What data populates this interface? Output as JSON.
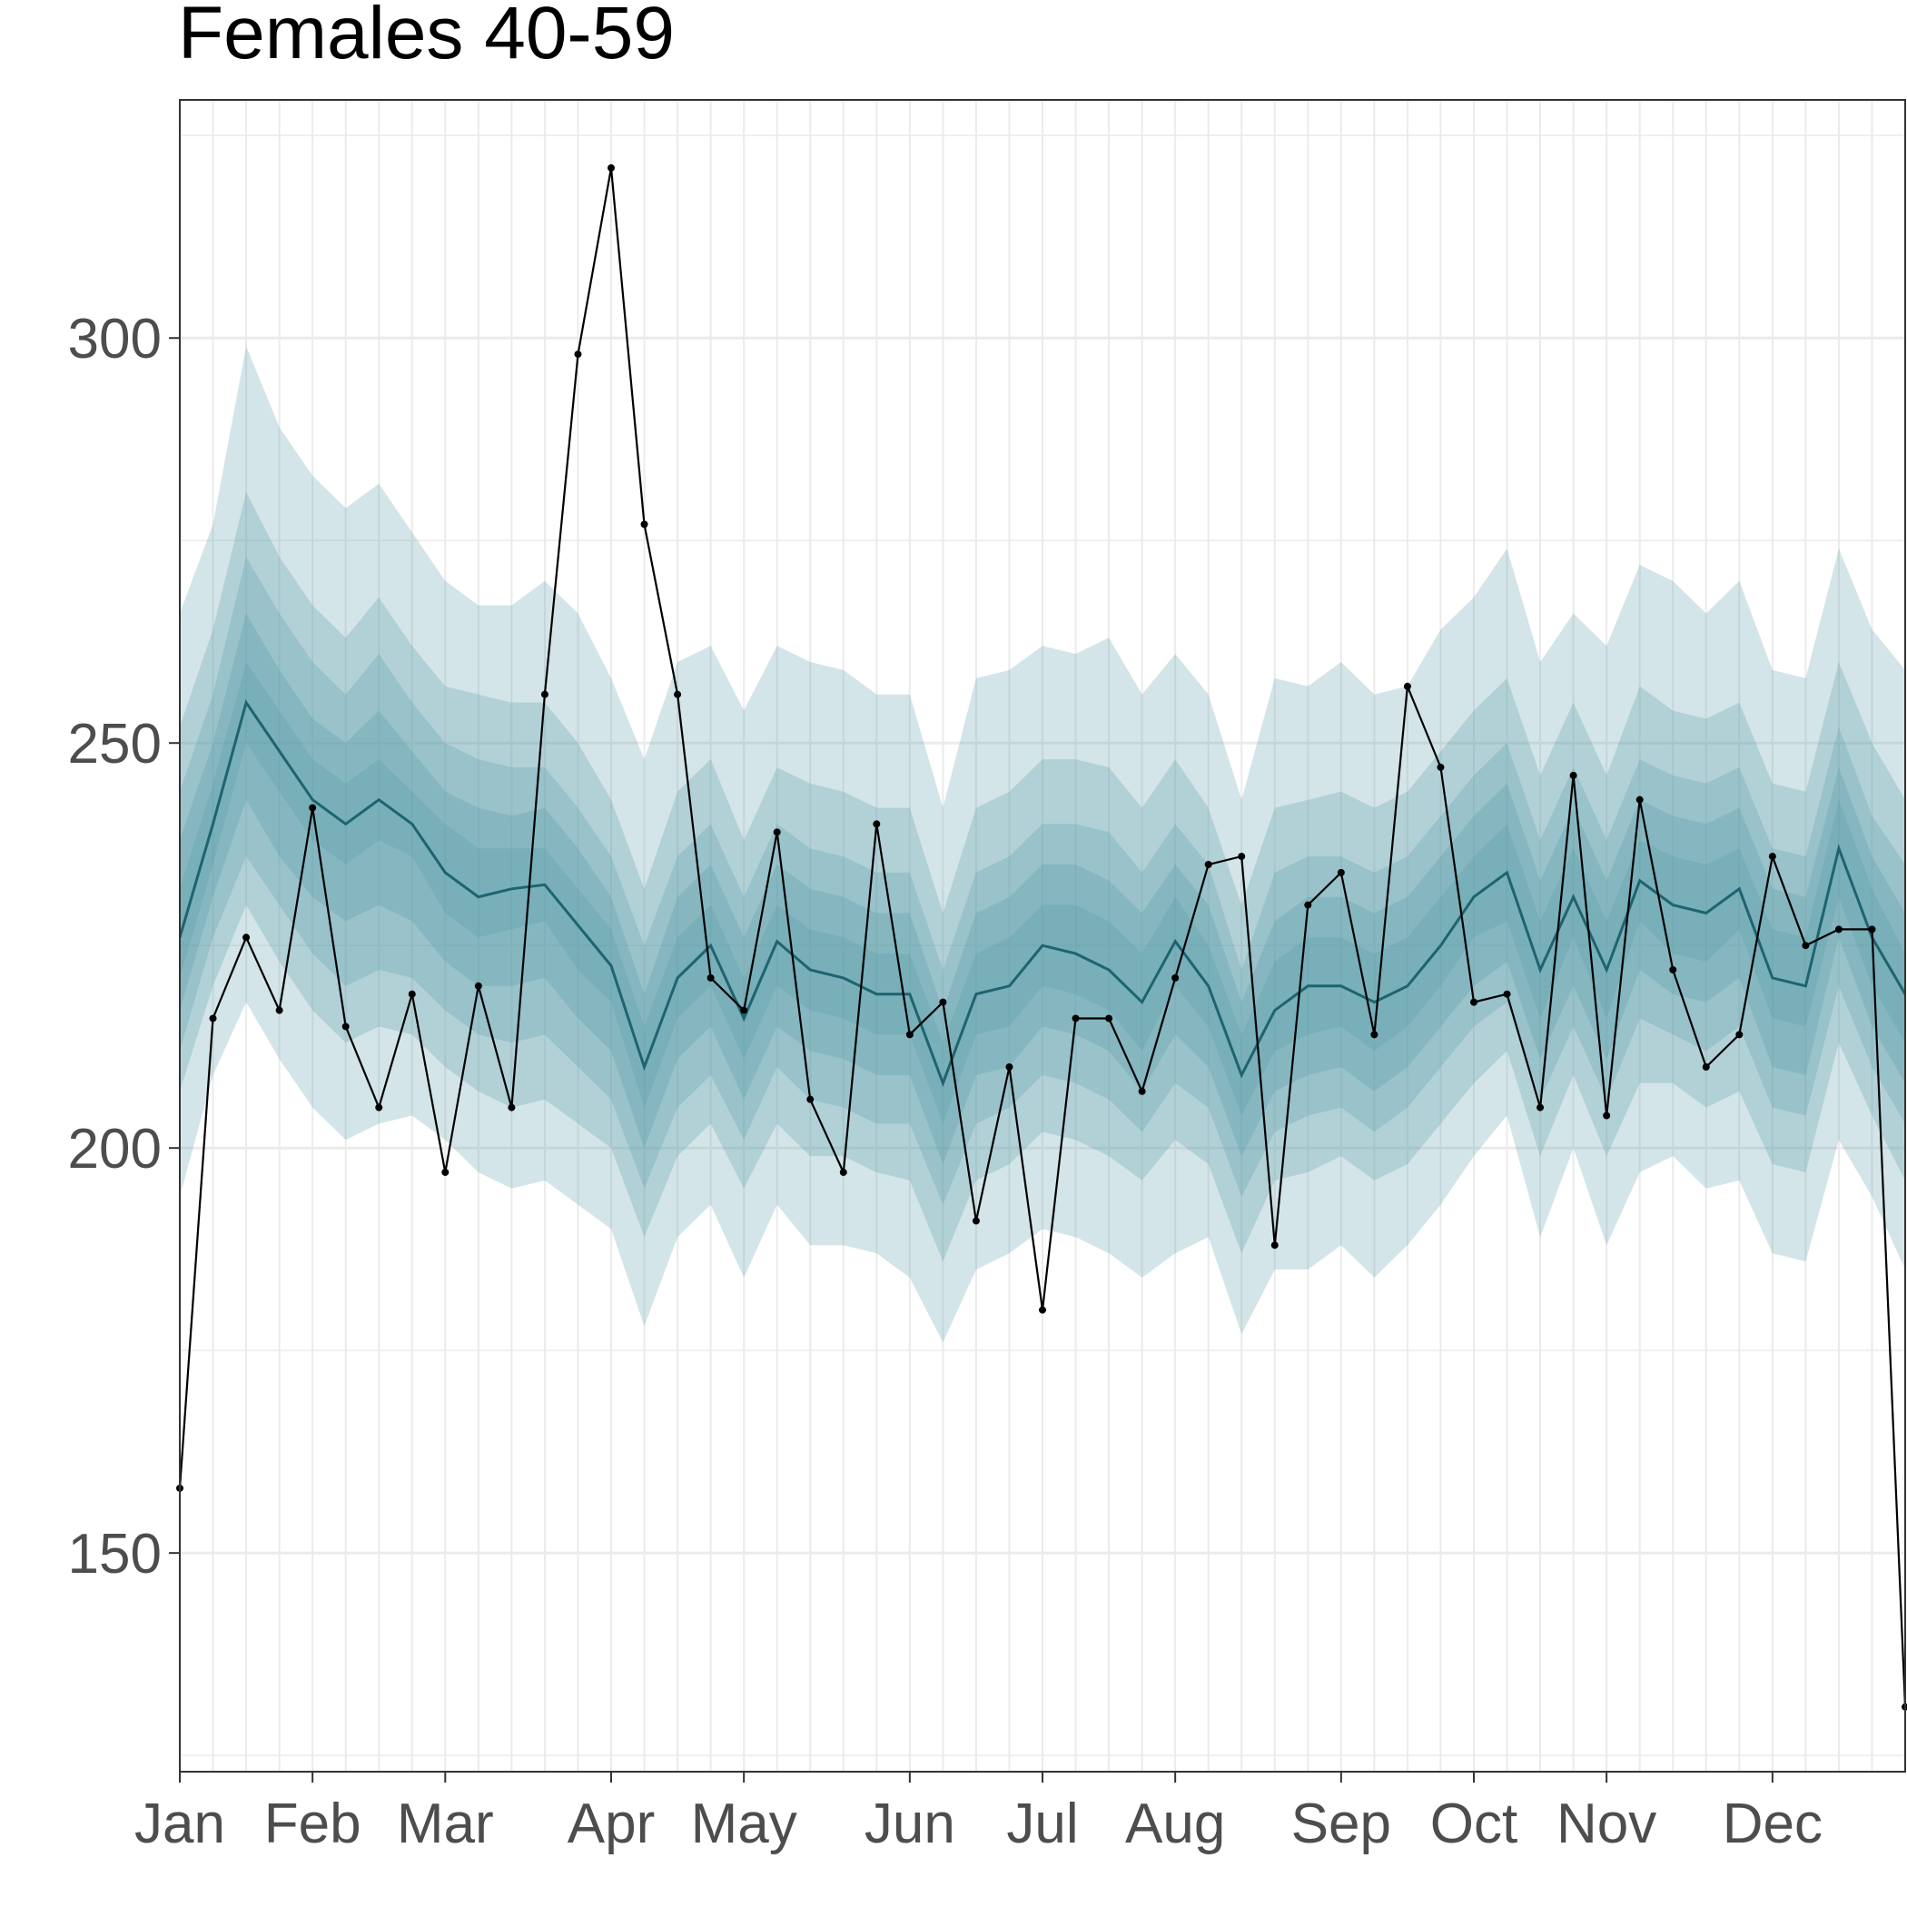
{
  "chart_data": {
    "type": "area",
    "title": "Females 40-59",
    "xlabel": "",
    "ylabel": "",
    "x_tick_labels": [
      "Jan",
      "Feb",
      "Mar",
      "Apr",
      "May",
      "Jun",
      "Jul",
      "Aug",
      "Sep",
      "Oct",
      "Nov",
      "Dec"
    ],
    "y_ticks": [
      150,
      200,
      250,
      300
    ],
    "ylim": [
      123,
      329.4
    ],
    "weeks": 53,
    "grid": true,
    "colors": {
      "band": "#4e98a3",
      "median": "#1e6470",
      "observed": "#000000",
      "grid": "#ebebeb",
      "border": "#333333"
    },
    "band_opacity": 0.25,
    "median": [
      226,
      240,
      255,
      249,
      243,
      240,
      243,
      240,
      234,
      231,
      232,
      232.5,
      227.5,
      222.5,
      210,
      221,
      225,
      216,
      225.5,
      222,
      221,
      219,
      219,
      208,
      219,
      220,
      225,
      224,
      222,
      218,
      225.5,
      220,
      209,
      217,
      220,
      220,
      218,
      220,
      225,
      231,
      234,
      222,
      231,
      222,
      233,
      230,
      229,
      232,
      221,
      220,
      237,
      226,
      219
    ],
    "bands": [
      {
        "upper": [
          266,
          277,
          299,
          289,
          283,
          279,
          282,
          276,
          270,
          267,
          267,
          270,
          266,
          258,
          248,
          260,
          262,
          254,
          262,
          260,
          259,
          256,
          256,
          242,
          258,
          259,
          262,
          261,
          263,
          256,
          261,
          256,
          243,
          258,
          257,
          260,
          256,
          257,
          264,
          268,
          274,
          260,
          266,
          262,
          272,
          270,
          266,
          270,
          259,
          258,
          274,
          264,
          259
        ],
        "lower": [
          194,
          209,
          218,
          211,
          205,
          201,
          203,
          204,
          201,
          197,
          195,
          196,
          193,
          190,
          178,
          189,
          193,
          184,
          193,
          188,
          188,
          187,
          184,
          176,
          185,
          187,
          190,
          189,
          187,
          184,
          187,
          189,
          177,
          185,
          185,
          188,
          184,
          188,
          193,
          199,
          204,
          189,
          200,
          188,
          197,
          199,
          195,
          196,
          187,
          186,
          201,
          194,
          185
        ]
      },
      {
        "upper": [
          252,
          264,
          281,
          273,
          267,
          263,
          268,
          262,
          257,
          256,
          255,
          255,
          250,
          243,
          232,
          244,
          248,
          238,
          247,
          245,
          244,
          242,
          242,
          229,
          242,
          244,
          248,
          248,
          247,
          242,
          248,
          242,
          230,
          242,
          243,
          244,
          242,
          244,
          249,
          254,
          258,
          246,
          255,
          246,
          257,
          254,
          253,
          255,
          245,
          244,
          260,
          250,
          243
        ],
        "lower": [
          207,
          220,
          230,
          223,
          217,
          213,
          215,
          214,
          210,
          207,
          205,
          206,
          203,
          200,
          189,
          199,
          203,
          195,
          203,
          199,
          199,
          197,
          196,
          186,
          196,
          198,
          202,
          201,
          199,
          196,
          201,
          198,
          187,
          196,
          197,
          199,
          196,
          198,
          203,
          208,
          212,
          199,
          209,
          199,
          208,
          208,
          205,
          207,
          198,
          197,
          213,
          204,
          196
        ]
      },
      {
        "upper": [
          244,
          256,
          273,
          266,
          260,
          256,
          261,
          255,
          250,
          248,
          247,
          247,
          242,
          236,
          225,
          236,
          240,
          231,
          240,
          237,
          236,
          234,
          234,
          222,
          234,
          236,
          240,
          240,
          239,
          234,
          240,
          235,
          222,
          234,
          236,
          236,
          234,
          236,
          241,
          246,
          250,
          238,
          247,
          238,
          248,
          246,
          245,
          247,
          237,
          236,
          252,
          241,
          235
        ],
        "lower": [
          212,
          226,
          236,
          230,
          224,
          220,
          222,
          221,
          217,
          214,
          213,
          214,
          210,
          206,
          195,
          205,
          209,
          201,
          210,
          206,
          205,
          203,
          203,
          193,
          203,
          205,
          209,
          208,
          206,
          202,
          208,
          205,
          194,
          202,
          204,
          205,
          202,
          205,
          210,
          215,
          218,
          206,
          215,
          206,
          216,
          214,
          212,
          215,
          205,
          204,
          220,
          210,
          203
        ]
      },
      {
        "upper": [
          238,
          250,
          266,
          259,
          253,
          250,
          254,
          249,
          244,
          242,
          241,
          242,
          237,
          231,
          219,
          231,
          235,
          226,
          235,
          232,
          231,
          229,
          229,
          217,
          229,
          231,
          235,
          235,
          233,
          229,
          235,
          230,
          218,
          228,
          231,
          231,
          229,
          231,
          236,
          241,
          245,
          233,
          242,
          233,
          243,
          241,
          240,
          242,
          232,
          231,
          247,
          236,
          229
        ],
        "lower": [
          217,
          231,
          243,
          236,
          231,
          228,
          230,
          228,
          223,
          220,
          220,
          221,
          216,
          212,
          200,
          211,
          215,
          206,
          215,
          212,
          211,
          209,
          209,
          198,
          209,
          210,
          215,
          214,
          212,
          207,
          214,
          210,
          199,
          207,
          209,
          210,
          207,
          210,
          215,
          220,
          223,
          211,
          220,
          211,
          222,
          219,
          218,
          221,
          210,
          209,
          226,
          215,
          208
        ]
      },
      {
        "upper": [
          232,
          245,
          260,
          254,
          248,
          245,
          248,
          244,
          240,
          237,
          237,
          237,
          232,
          227,
          215,
          226,
          230,
          221,
          230,
          227,
          226,
          224,
          224,
          213,
          224,
          226,
          230,
          230,
          228,
          224,
          231,
          225,
          214,
          223,
          226,
          226,
          224,
          226,
          231,
          236,
          240,
          228,
          237,
          228,
          238,
          236,
          235,
          237,
          227,
          226,
          243,
          232,
          224
        ],
        "lower": [
          221,
          235,
          250,
          244,
          238,
          235,
          238,
          236,
          229,
          226,
          227,
          228,
          222,
          218,
          205,
          216,
          220,
          211,
          220,
          217,
          216,
          214,
          214,
          203,
          214,
          215,
          220,
          219,
          217,
          212,
          220,
          215,
          204,
          212,
          214,
          215,
          212,
          215,
          220,
          226,
          228,
          216,
          226,
          216,
          228,
          224,
          223,
          227,
          216,
          215,
          231,
          220,
          213
        ]
      }
    ],
    "observed": [
      158,
      216,
      226,
      217,
      242,
      215,
      205,
      219,
      197,
      220,
      205,
      256,
      298,
      321,
      277,
      256,
      221,
      217,
      239,
      206,
      197,
      240,
      214,
      218,
      191,
      210,
      180,
      216,
      216,
      207,
      221,
      235,
      236,
      188,
      230,
      234,
      214,
      257,
      247,
      218,
      219,
      205,
      246,
      204,
      243,
      222,
      210,
      214,
      236,
      225,
      227,
      227,
      131
    ]
  }
}
